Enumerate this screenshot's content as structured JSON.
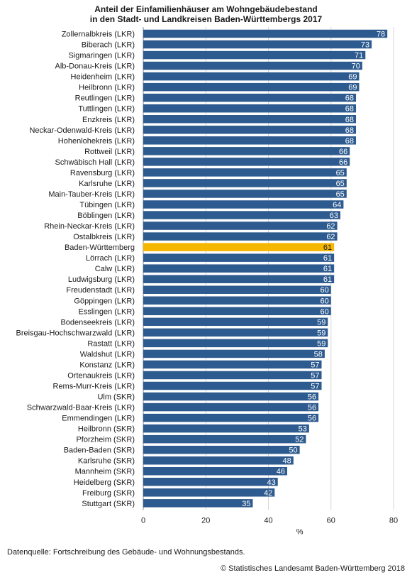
{
  "chart_data": {
    "type": "bar",
    "orientation": "horizontal",
    "title_lines": [
      "Anteil der Einfamilienhäuser am Wohngebäudebestand",
      "in den Stadt- und Landkreisen Baden-Württembergs 2017"
    ],
    "xlabel": "%",
    "xlim": [
      0,
      80
    ],
    "xticks": [
      0,
      20,
      40,
      60,
      80
    ],
    "grid": true,
    "bar_color": "#2e5b8f",
    "highlight_color": "#f5b700",
    "highlight_category": "Baden-Württemberg",
    "categories": [
      "Zollernalbkreis (LKR)",
      "Biberach (LKR)",
      "Sigmaringen (LKR)",
      "Alb-Donau-Kreis (LKR)",
      "Heidenheim (LKR)",
      "Heilbronn (LKR)",
      "Reutlingen (LKR)",
      "Tuttlingen (LKR)",
      "Enzkreis (LKR)",
      "Neckar-Odenwald-Kreis (LKR)",
      "Hohenlohekreis (LKR)",
      "Rottweil (LKR)",
      "Schwäbisch Hall (LKR)",
      "Ravensburg (LKR)",
      "Karlsruhe (LKR)",
      "Main-Tauber-Kreis (LKR)",
      "Tübingen (LKR)",
      "Böblingen (LKR)",
      "Rhein-Neckar-Kreis (LKR)",
      "Ostalbkreis (LKR)",
      "Baden-Württemberg",
      "Lörrach (LKR)",
      "Calw (LKR)",
      "Ludwigsburg (LKR)",
      "Freudenstadt (LKR)",
      "Göppingen (LKR)",
      "Esslingen (LKR)",
      "Bodenseekreis (LKR)",
      "Breisgau-Hochschwarzwald (LKR)",
      "Rastatt (LKR)",
      "Waldshut (LKR)",
      "Konstanz (LKR)",
      "Ortenaukreis (LKR)",
      "Rems-Murr-Kreis (LKR)",
      "Ulm (SKR)",
      "Schwarzwald-Baar-Kreis (LKR)",
      "Emmendingen (LKR)",
      "Heilbronn (SKR)",
      "Pforzheim (SKR)",
      "Baden-Baden (SKR)",
      "Karlsruhe (SKR)",
      "Mannheim (SKR)",
      "Heidelberg (SKR)",
      "Freiburg (SKR)",
      "Stuttgart (SKR)"
    ],
    "values": [
      78,
      73,
      71,
      70,
      69,
      69,
      68,
      68,
      68,
      68,
      68,
      66,
      66,
      65,
      65,
      65,
      64,
      63,
      62,
      62,
      61,
      61,
      61,
      61,
      60,
      60,
      60,
      59,
      59,
      59,
      58,
      57,
      57,
      57,
      56,
      56,
      56,
      53,
      52,
      50,
      48,
      46,
      43,
      42,
      35
    ]
  },
  "footer": {
    "source": "Datenquelle: Fortschreibung des Gebäude- und Wohnungsbestands.",
    "copyright": "© Statistisches Landesamt Baden-Württemberg 2018"
  }
}
